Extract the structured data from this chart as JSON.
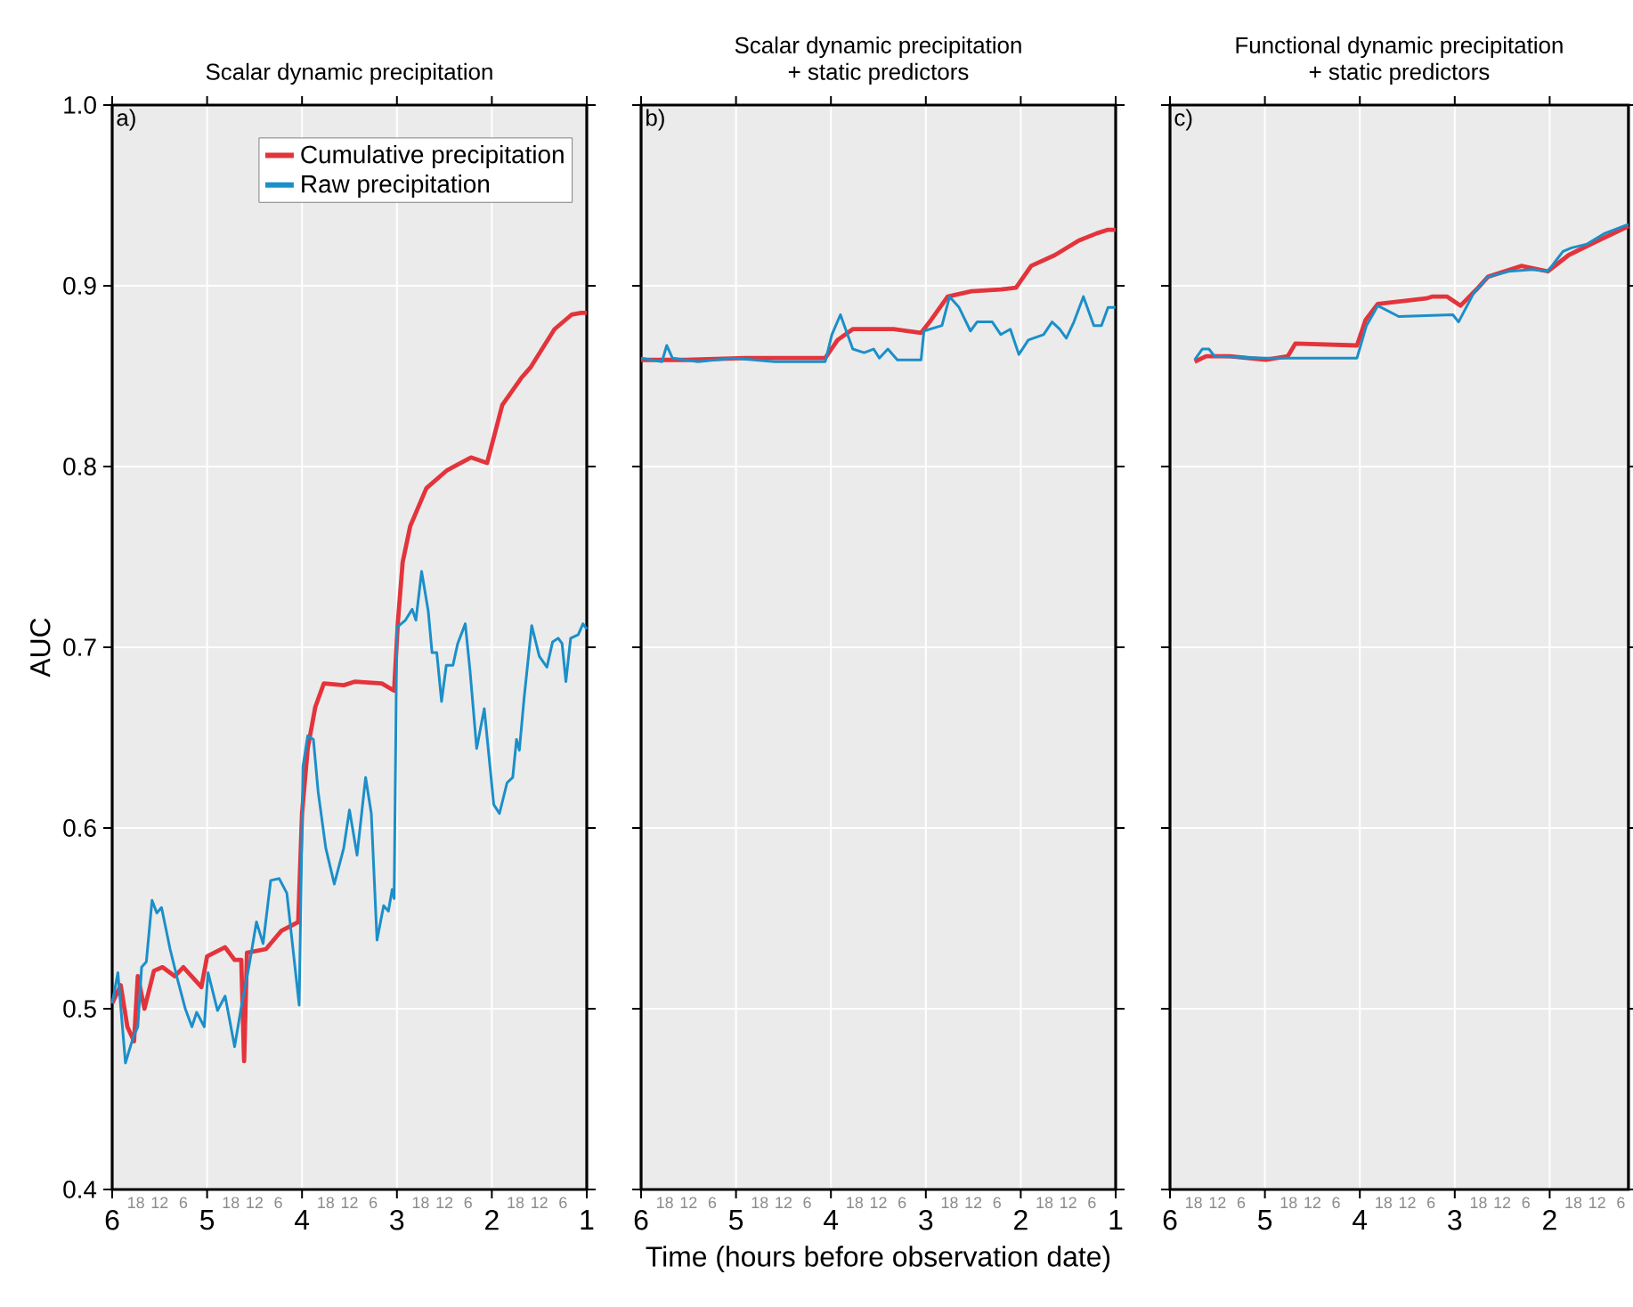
{
  "chart_data": [
    {
      "type": "line",
      "title": "Scalar dynamic precipitation",
      "ylabel": "AUC",
      "annotations": [
        "a)",
        "18",
        "12",
        "6",
        "18",
        "12",
        "6",
        "18",
        "12",
        "6",
        "18",
        "12",
        "6",
        "18",
        "12",
        "6"
      ],
      "legend": "top right",
      "grid": true,
      "xlim": [
        6,
        1
      ],
      "ylim": [
        0.4,
        1.0
      ],
      "xticks": [
        6,
        5,
        4,
        3,
        2,
        1
      ],
      "yticks": [
        {
          "value": 0.4,
          "label": "0.4"
        },
        {
          "value": 0.5,
          "label": "0.5"
        },
        {
          "value": 0.6,
          "label": "0.6"
        },
        {
          "value": 0.7,
          "label": "0.7"
        },
        {
          "value": 0.8,
          "label": "0.8"
        },
        {
          "value": 0.9,
          "label": "0.9"
        },
        {
          "value": 1.0,
          "label": "1.0"
        }
      ],
      "series": [
        {
          "name": "Cumulative precipitation",
          "color": "#e3343c",
          "x": [
            6.0,
            5.91,
            5.84,
            5.77,
            5.73,
            5.66,
            5.56,
            5.47,
            5.34,
            5.25,
            5.06,
            5.0,
            4.81,
            4.71,
            4.64,
            4.61,
            4.58,
            4.38,
            4.22,
            4.04,
            4.0,
            3.94,
            3.86,
            3.77,
            3.56,
            3.44,
            3.16,
            3.03,
            2.99,
            2.94,
            2.86,
            2.69,
            2.47,
            2.22,
            2.05,
            1.89,
            1.69,
            1.59,
            1.34,
            1.16,
            1.06,
            1.0
          ],
          "values": [
            0.503,
            0.513,
            0.49,
            0.482,
            0.518,
            0.5,
            0.521,
            0.523,
            0.518,
            0.523,
            0.512,
            0.529,
            0.534,
            0.527,
            0.527,
            0.471,
            0.531,
            0.533,
            0.543,
            0.548,
            0.608,
            0.644,
            0.667,
            0.68,
            0.679,
            0.681,
            0.68,
            0.676,
            0.714,
            0.747,
            0.767,
            0.788,
            0.798,
            0.805,
            0.802,
            0.834,
            0.849,
            0.855,
            0.876,
            0.884,
            0.885,
            0.885
          ]
        },
        {
          "name": "Raw precipitation",
          "color": "#1b8fc9",
          "x": [
            6.0,
            5.94,
            5.86,
            5.78,
            5.73,
            5.69,
            5.64,
            5.58,
            5.53,
            5.48,
            5.39,
            5.31,
            5.23,
            5.16,
            5.11,
            5.03,
            4.99,
            4.89,
            4.81,
            4.71,
            4.64,
            4.56,
            4.48,
            4.41,
            4.33,
            4.24,
            4.16,
            4.03,
            3.99,
            3.94,
            3.88,
            3.83,
            3.75,
            3.66,
            3.56,
            3.5,
            3.42,
            3.33,
            3.27,
            3.21,
            3.14,
            3.09,
            3.05,
            3.03,
            3.0,
            2.91,
            2.84,
            2.8,
            2.74,
            2.67,
            2.63,
            2.58,
            2.53,
            2.48,
            2.41,
            2.36,
            2.28,
            2.23,
            2.16,
            2.08,
            1.98,
            1.92,
            1.84,
            1.78,
            1.74,
            1.71,
            1.66,
            1.58,
            1.5,
            1.42,
            1.36,
            1.3,
            1.26,
            1.22,
            1.17,
            1.09,
            1.04,
            1.0
          ],
          "values": [
            0.503,
            0.52,
            0.47,
            0.484,
            0.49,
            0.523,
            0.526,
            0.56,
            0.553,
            0.556,
            0.533,
            0.516,
            0.5,
            0.49,
            0.498,
            0.49,
            0.52,
            0.499,
            0.507,
            0.479,
            0.501,
            0.523,
            0.548,
            0.536,
            0.571,
            0.572,
            0.564,
            0.502,
            0.634,
            0.651,
            0.649,
            0.62,
            0.589,
            0.569,
            0.589,
            0.61,
            0.585,
            0.628,
            0.608,
            0.538,
            0.557,
            0.554,
            0.566,
            0.561,
            0.711,
            0.715,
            0.721,
            0.715,
            0.742,
            0.72,
            0.697,
            0.697,
            0.67,
            0.69,
            0.69,
            0.702,
            0.713,
            0.687,
            0.644,
            0.666,
            0.613,
            0.608,
            0.625,
            0.628,
            0.649,
            0.643,
            0.672,
            0.712,
            0.695,
            0.689,
            0.703,
            0.705,
            0.702,
            0.681,
            0.705,
            0.707,
            0.713,
            0.71
          ]
        }
      ]
    },
    {
      "type": "line",
      "title": "Scalar dynamic precipitation",
      "subtitle": "+ static predictors",
      "xlabel": "Time (hours before observation date)",
      "annotations": [
        "b)",
        "18",
        "12",
        "6",
        "18",
        "12",
        "6",
        "18",
        "12",
        "6",
        "18",
        "12",
        "6",
        "18",
        "12",
        "6"
      ],
      "grid": true,
      "tick_labels": "x",
      "xlim": [
        6,
        1
      ],
      "ylim": [
        0.4,
        1.0
      ],
      "xticks": [
        6,
        5,
        4,
        3,
        2,
        1
      ],
      "yticks": [
        0.4,
        0.5,
        0.6,
        0.7,
        0.8,
        0.9,
        1.0
      ],
      "series": [
        {
          "color": "#e3343c",
          "x": [
            6.0,
            5.53,
            4.9,
            4.06,
            3.93,
            3.77,
            3.34,
            3.05,
            2.96,
            2.77,
            2.52,
            2.21,
            2.05,
            1.89,
            1.64,
            1.39,
            1.2,
            1.08,
            1.0
          ],
          "values": [
            0.859,
            0.859,
            0.86,
            0.86,
            0.87,
            0.876,
            0.876,
            0.874,
            0.88,
            0.894,
            0.897,
            0.898,
            0.899,
            0.911,
            0.917,
            0.925,
            0.929,
            0.931,
            0.931
          ]
        },
        {
          "color": "#1b8fc9",
          "x": [
            6.0,
            5.78,
            5.73,
            5.67,
            5.4,
            5.03,
            4.59,
            4.06,
            3.99,
            3.9,
            3.77,
            3.65,
            3.55,
            3.49,
            3.4,
            3.3,
            3.05,
            3.02,
            2.83,
            2.75,
            2.65,
            2.53,
            2.46,
            2.3,
            2.21,
            2.11,
            2.02,
            1.92,
            1.76,
            1.67,
            1.59,
            1.52,
            1.44,
            1.34,
            1.23,
            1.15,
            1.08,
            1.0
          ],
          "values": [
            0.86,
            0.858,
            0.867,
            0.86,
            0.858,
            0.86,
            0.858,
            0.858,
            0.873,
            0.884,
            0.865,
            0.863,
            0.865,
            0.86,
            0.865,
            0.859,
            0.859,
            0.875,
            0.878,
            0.894,
            0.888,
            0.875,
            0.88,
            0.88,
            0.873,
            0.876,
            0.862,
            0.87,
            0.873,
            0.88,
            0.876,
            0.871,
            0.88,
            0.894,
            0.878,
            0.878,
            0.888,
            0.888
          ]
        }
      ]
    },
    {
      "type": "line",
      "title": "Functional dynamic precipitation",
      "subtitle": "+ static predictors",
      "annotations": [
        "c)",
        "18",
        "12",
        "6",
        "18",
        "12",
        "6",
        "18",
        "12",
        "6",
        "18",
        "12",
        "6",
        "18",
        "12",
        "6"
      ],
      "grid": true,
      "tick_labels": "x",
      "xlim": [
        6,
        1.17
      ],
      "ylim": [
        0.4,
        1.0
      ],
      "xticks": [
        6,
        5,
        4,
        3,
        2
      ],
      "yticks": [
        0.4,
        0.5,
        0.6,
        0.7,
        0.8,
        0.9,
        1.0
      ],
      "series": [
        {
          "color": "#e3343c",
          "x": [
            5.74,
            5.62,
            5.37,
            4.99,
            4.76,
            4.68,
            4.03,
            3.94,
            3.81,
            3.3,
            3.24,
            3.08,
            2.94,
            2.77,
            2.65,
            2.3,
            2.02,
            1.8,
            1.49,
            1.17
          ],
          "values": [
            0.858,
            0.861,
            0.861,
            0.859,
            0.861,
            0.868,
            0.867,
            0.881,
            0.89,
            0.893,
            0.894,
            0.894,
            0.889,
            0.898,
            0.905,
            0.911,
            0.908,
            0.917,
            0.925,
            0.933
          ]
        },
        {
          "color": "#1b8fc9",
          "x": [
            5.74,
            5.66,
            5.59,
            5.53,
            4.99,
            4.68,
            4.03,
            3.93,
            3.81,
            3.59,
            3.02,
            2.96,
            2.8,
            2.65,
            2.43,
            2.18,
            2.02,
            1.86,
            1.77,
            1.61,
            1.42,
            1.17
          ],
          "values": [
            0.859,
            0.865,
            0.865,
            0.861,
            0.86,
            0.86,
            0.86,
            0.878,
            0.889,
            0.883,
            0.884,
            0.88,
            0.896,
            0.905,
            0.908,
            0.909,
            0.908,
            0.919,
            0.921,
            0.923,
            0.929,
            0.934
          ]
        }
      ]
    }
  ]
}
